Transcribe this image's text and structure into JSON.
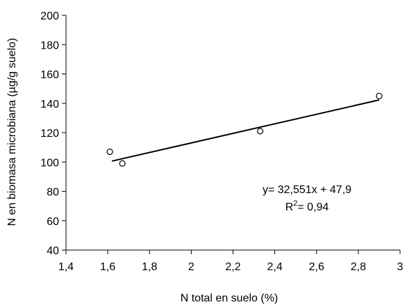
{
  "chart_data": {
    "type": "scatter",
    "title": "",
    "xlabel": "N total en suelo (%)",
    "ylabel": "N en biomasa microbiana (µg/g suelo)",
    "xlim": [
      1.4,
      3.0
    ],
    "ylim": [
      40,
      200
    ],
    "xticks": [
      1.4,
      1.6,
      1.8,
      2.0,
      2.2,
      2.4,
      2.6,
      2.8,
      3.0
    ],
    "xtick_labels": [
      "1,4",
      "1,6",
      "1,8",
      "2",
      "2,2",
      "2,4",
      "2,6",
      "2,8",
      "3"
    ],
    "yticks": [
      40,
      60,
      80,
      100,
      120,
      140,
      160,
      180,
      200
    ],
    "ytick_labels": [
      "40",
      "60",
      "80",
      "100",
      "120",
      "140",
      "160",
      "180",
      "200"
    ],
    "grid": false,
    "series": [
      {
        "marker": "open-circle",
        "x": [
          1.61,
          1.67,
          2.33,
          2.9
        ],
        "y": [
          107,
          99,
          121,
          145
        ]
      }
    ],
    "trendline": {
      "slope": 32.551,
      "intercept": 47.9,
      "x_range": [
        1.62,
        2.9
      ]
    },
    "annotations": {
      "equation": "y= 32,551x + 47,9",
      "r2_prefix": "R",
      "r2_sup": "2",
      "r2_value": "= 0,94"
    }
  }
}
